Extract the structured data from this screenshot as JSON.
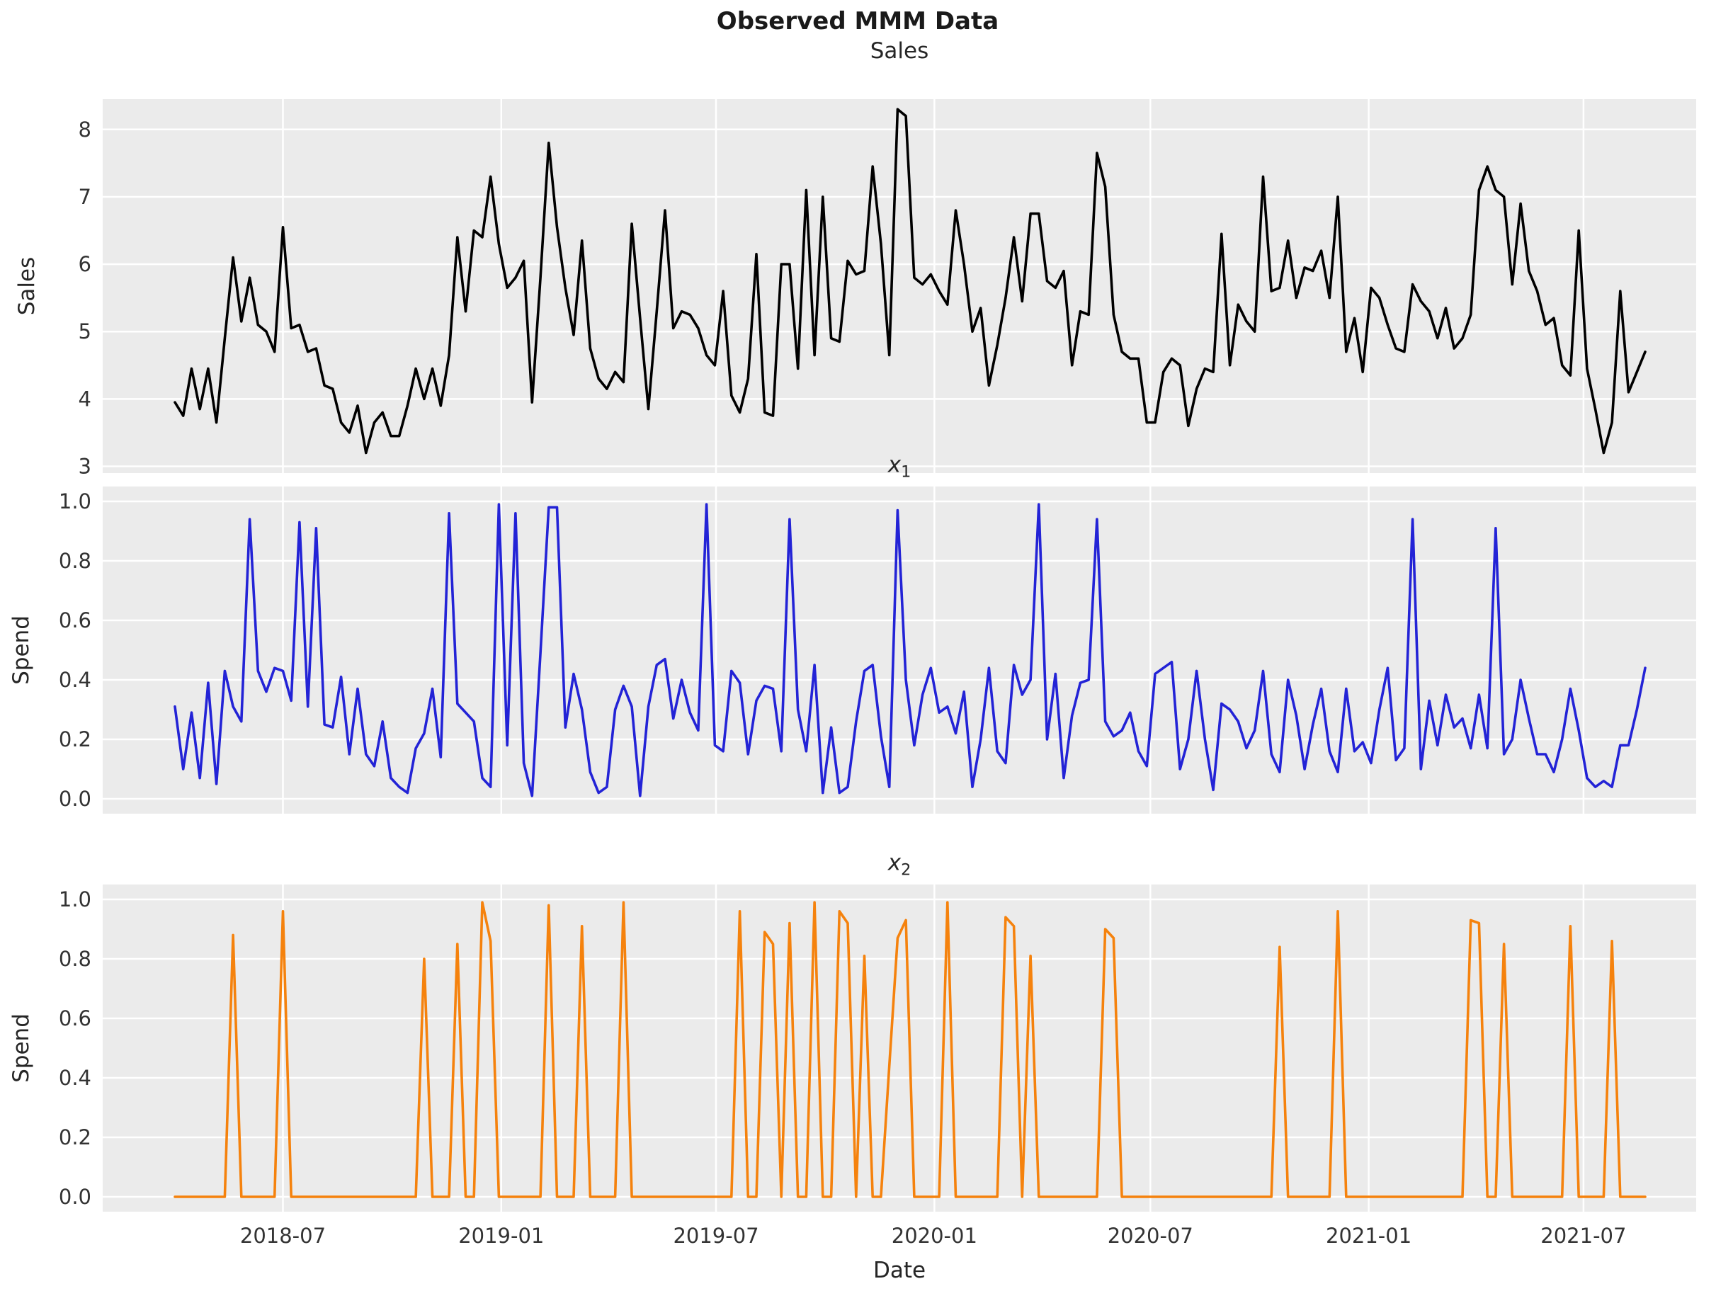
{
  "figure": {
    "suptitle": "Observed MMM Data",
    "xlabel": "Date"
  },
  "style": {
    "axes_bg": "#ebebeb",
    "grid_color": "#ffffff",
    "text_color": "#262626",
    "tick_color": "#333333",
    "sales_color": "#000000",
    "x1_color": "#2323d6",
    "x2_color": "#f5820d"
  },
  "xaxis": {
    "start_date": "2018-04-01",
    "freq_days": 7,
    "n_points": 178,
    "tick_labels": [
      "2018-07",
      "2019-01",
      "2019-07",
      "2020-01",
      "2020-07",
      "2021-01",
      "2021-07"
    ],
    "tick_dates": [
      "2018-07-01",
      "2019-01-01",
      "2019-07-01",
      "2020-01-01",
      "2020-07-01",
      "2021-01-01",
      "2021-07-01"
    ]
  },
  "chart_data": [
    {
      "type": "line",
      "title": "Sales",
      "ylabel": "Sales",
      "series_name": "Sales",
      "x": "weekly dates from 2018-04-01, 178 points",
      "ylim": [
        2.9,
        8.45
      ],
      "yticks": [
        3,
        4,
        5,
        6,
        7,
        8
      ],
      "ytick_labels": [
        "3",
        "4",
        "5",
        "6",
        "7",
        "8"
      ],
      "grid": true,
      "legend": false,
      "values": [
        3.95,
        3.75,
        4.45,
        3.85,
        4.45,
        3.65,
        4.9,
        6.1,
        5.15,
        5.8,
        5.1,
        5.0,
        4.7,
        6.55,
        5.05,
        5.1,
        4.7,
        4.75,
        4.2,
        4.15,
        3.65,
        3.5,
        3.9,
        3.2,
        3.65,
        3.8,
        3.45,
        3.45,
        3.9,
        4.45,
        4.0,
        4.45,
        3.9,
        4.65,
        6.4,
        5.3,
        6.5,
        6.4,
        7.3,
        6.3,
        5.65,
        5.8,
        6.05,
        3.95,
        5.8,
        7.8,
        6.55,
        5.65,
        4.95,
        6.35,
        4.75,
        4.3,
        4.15,
        4.4,
        4.25,
        6.6,
        5.2,
        3.85,
        5.3,
        6.8,
        5.05,
        5.3,
        5.25,
        5.05,
        4.65,
        4.5,
        5.6,
        4.05,
        3.8,
        4.3,
        6.15,
        3.8,
        3.75,
        6.0,
        6.0,
        4.45,
        7.1,
        4.65,
        7.0,
        4.9,
        4.85,
        6.05,
        5.85,
        5.9,
        7.45,
        6.3,
        4.65,
        8.3,
        8.2,
        5.8,
        5.7,
        5.85,
        5.6,
        5.4,
        6.8,
        6.0,
        5.0,
        5.35,
        4.2,
        4.8,
        5.5,
        6.4,
        5.45,
        6.75,
        6.75,
        5.75,
        5.65,
        5.9,
        4.5,
        5.3,
        5.25,
        7.65,
        7.15,
        5.25,
        4.7,
        4.6,
        4.6,
        3.65,
        3.65,
        4.4,
        4.6,
        4.5,
        3.6,
        4.15,
        4.45,
        4.4,
        6.45,
        4.5,
        5.4,
        5.15,
        5.0,
        7.3,
        5.6,
        5.65,
        6.35,
        5.5,
        5.95,
        5.9,
        6.2,
        5.5,
        7.0,
        4.7,
        5.2,
        4.4,
        5.65,
        5.5,
        5.1,
        4.75,
        4.7,
        5.7,
        5.45,
        5.3,
        4.9,
        5.35,
        4.75,
        4.9,
        5.25,
        7.1,
        7.45,
        7.1,
        7.0,
        5.7,
        6.9,
        5.9,
        5.6,
        5.1,
        5.2,
        4.5,
        4.35,
        6.5,
        4.45,
        3.85,
        3.2,
        3.65,
        5.6,
        4.1,
        4.4,
        4.7
      ]
    },
    {
      "type": "line",
      "title": "x_1",
      "title_base": "x",
      "title_sub": "1",
      "ylabel": "Spend",
      "series_name": "x1 media spend",
      "x": "weekly dates from 2018-04-01, 178 points",
      "ylim": [
        -0.05,
        1.05
      ],
      "yticks": [
        0.0,
        0.2,
        0.4,
        0.6,
        0.8,
        1.0
      ],
      "ytick_labels": [
        "0.0",
        "0.2",
        "0.4",
        "0.6",
        "0.8",
        "1.0"
      ],
      "grid": true,
      "legend": false,
      "values": [
        0.31,
        0.1,
        0.29,
        0.07,
        0.39,
        0.05,
        0.43,
        0.31,
        0.26,
        0.94,
        0.43,
        0.36,
        0.44,
        0.43,
        0.33,
        0.93,
        0.31,
        0.91,
        0.25,
        0.24,
        0.41,
        0.15,
        0.37,
        0.15,
        0.11,
        0.26,
        0.07,
        0.04,
        0.02,
        0.17,
        0.22,
        0.37,
        0.14,
        0.96,
        0.32,
        0.29,
        0.26,
        0.07,
        0.04,
        0.99,
        0.18,
        0.96,
        0.12,
        0.01,
        0.49,
        0.98,
        0.98,
        0.24,
        0.42,
        0.3,
        0.09,
        0.02,
        0.04,
        0.3,
        0.38,
        0.31,
        0.01,
        0.31,
        0.45,
        0.47,
        0.27,
        0.4,
        0.29,
        0.23,
        0.99,
        0.18,
        0.16,
        0.43,
        0.39,
        0.15,
        0.33,
        0.38,
        0.37,
        0.16,
        0.94,
        0.3,
        0.16,
        0.45,
        0.02,
        0.24,
        0.02,
        0.04,
        0.26,
        0.43,
        0.45,
        0.21,
        0.04,
        0.97,
        0.4,
        0.18,
        0.35,
        0.44,
        0.29,
        0.31,
        0.22,
        0.36,
        0.04,
        0.2,
        0.44,
        0.16,
        0.12,
        0.45,
        0.35,
        0.4,
        0.99,
        0.2,
        0.42,
        0.07,
        0.28,
        0.39,
        0.4,
        0.94,
        0.26,
        0.21,
        0.23,
        0.29,
        0.16,
        0.11,
        0.42,
        0.44,
        0.46,
        0.1,
        0.2,
        0.43,
        0.2,
        0.03,
        0.32,
        0.3,
        0.26,
        0.17,
        0.23,
        0.43,
        0.15,
        0.09,
        0.4,
        0.28,
        0.1,
        0.25,
        0.37,
        0.16,
        0.09,
        0.37,
        0.16,
        0.19,
        0.12,
        0.3,
        0.44,
        0.13,
        0.17,
        0.94,
        0.1,
        0.33,
        0.18,
        0.35,
        0.24,
        0.27,
        0.17,
        0.35,
        0.17,
        0.91,
        0.15,
        0.2,
        0.4,
        0.27,
        0.15,
        0.15,
        0.09,
        0.2,
        0.37,
        0.23,
        0.07,
        0.04,
        0.06,
        0.04,
        0.18,
        0.18,
        0.3,
        0.44
      ]
    },
    {
      "type": "line",
      "title": "x_2",
      "title_base": "x",
      "title_sub": "2",
      "ylabel": "Spend",
      "series_name": "x2 media spend",
      "x": "weekly dates from 2018-04-01, 178 points",
      "ylim": [
        -0.05,
        1.05
      ],
      "yticks": [
        0.0,
        0.2,
        0.4,
        0.6,
        0.8,
        1.0
      ],
      "ytick_labels": [
        "0.0",
        "0.2",
        "0.4",
        "0.6",
        "0.8",
        "1.0"
      ],
      "grid": true,
      "legend": false,
      "values": [
        0,
        0,
        0,
        0,
        0,
        0,
        0,
        0.88,
        0,
        0,
        0,
        0,
        0,
        0.96,
        0,
        0,
        0,
        0,
        0,
        0,
        0,
        0,
        0,
        0,
        0,
        0,
        0,
        0,
        0,
        0,
        0.8,
        0,
        0,
        0,
        0.85,
        0,
        0,
        0.99,
        0.86,
        0,
        0,
        0,
        0,
        0,
        0,
        0.98,
        0,
        0,
        0,
        0.91,
        0,
        0,
        0,
        0,
        0.99,
        0,
        0,
        0,
        0,
        0,
        0,
        0,
        0,
        0,
        0,
        0,
        0,
        0,
        0.96,
        0,
        0,
        0.89,
        0.85,
        0,
        0.92,
        0,
        0,
        0.99,
        0,
        0,
        0.96,
        0.92,
        0,
        0.81,
        0,
        0,
        0.44,
        0.87,
        0.93,
        0,
        0,
        0,
        0,
        0.99,
        0,
        0,
        0,
        0,
        0,
        0,
        0.94,
        0.91,
        0,
        0.81,
        0,
        0,
        0,
        0,
        0,
        0,
        0,
        0,
        0.9,
        0.87,
        0,
        0,
        0,
        0,
        0,
        0,
        0,
        0,
        0,
        0,
        0,
        0,
        0,
        0,
        0,
        0,
        0,
        0,
        0,
        0.84,
        0,
        0,
        0,
        0,
        0,
        0,
        0.96,
        0,
        0,
        0,
        0,
        0,
        0,
        0,
        0,
        0,
        0,
        0,
        0,
        0,
        0,
        0,
        0.93,
        0.92,
        0,
        0,
        0.85,
        0,
        0,
        0,
        0,
        0,
        0,
        0,
        0.91,
        0,
        0,
        0,
        0,
        0.86,
        0,
        0,
        0,
        0
      ]
    }
  ]
}
